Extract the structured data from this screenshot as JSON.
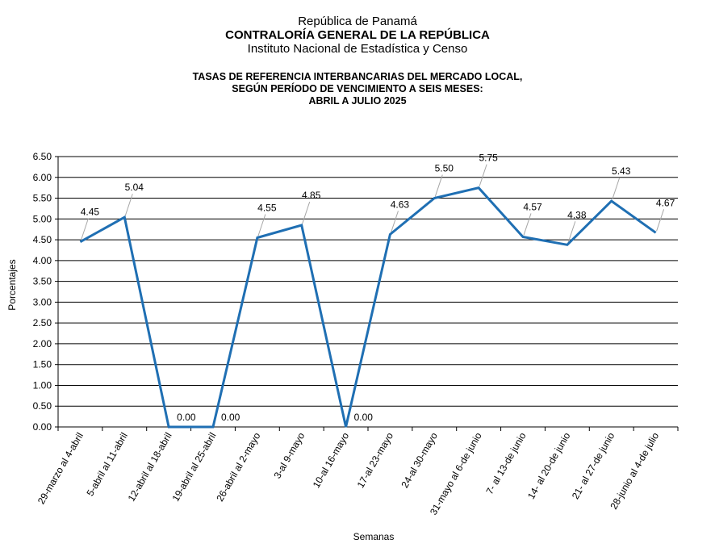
{
  "header": {
    "country": "República de Panamá",
    "organization": "CONTRALORÍA GENERAL DE LA REPÚBLICA",
    "institute": "Instituto Nacional de Estadística y Censo"
  },
  "chart_data": {
    "type": "line",
    "title": [
      "TASAS DE REFERENCIA INTERBANCARIAS DEL MERCADO LOCAL,",
      "SEGÚN PERÍODO DE VENCIMIENTO A SEIS MESES:",
      "ABRIL A JULIO 2025"
    ],
    "xlabel": "Semanas",
    "ylabel": "Porcentajes",
    "ylim": [
      0,
      6.5
    ],
    "ytick_step": 0.5,
    "grid": true,
    "line_color": "#1f6fb3",
    "categories": [
      "29-marzo al 4-abril",
      "5-abril al 11-abril",
      "12-abril al 18-abril",
      "19-abril al 25-abril",
      "26-abril al 2-mayo",
      "3-al 9-mayo",
      "10-al 16-mayo",
      "17-al 23-mayo",
      "24-al 30-mayo",
      "31-mayo al 6-de junio",
      "7- al 13-de junio",
      "14- al 20-de junio",
      "21- al 27-de junio",
      "28-junio al 4-de julio"
    ],
    "values": [
      4.45,
      5.04,
      0.0,
      0.0,
      4.55,
      4.85,
      0.0,
      4.63,
      5.5,
      5.75,
      4.57,
      4.38,
      5.43,
      4.67
    ]
  }
}
